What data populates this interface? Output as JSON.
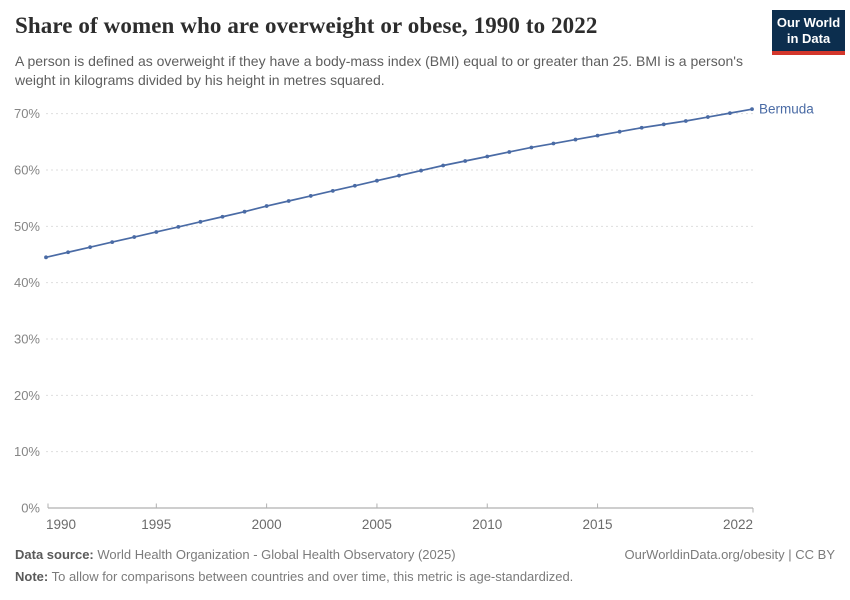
{
  "header": {
    "title": "Share of women who are overweight or obese, 1990 to 2022",
    "subtitle": "A person is defined as overweight if they have a body-mass index (BMI) equal to or greater than 25. BMI is a person's weight in kilograms divided by his height in metres squared.",
    "logo": {
      "line1": "Our World",
      "line2": "in Data"
    }
  },
  "chart_data": {
    "type": "line",
    "title": "Share of women who are overweight or obese, 1990 to 2022",
    "xlabel": "",
    "ylabel": "",
    "xlim": [
      1990,
      2022
    ],
    "ylim": [
      0,
      70
    ],
    "x_ticks": [
      1990,
      1995,
      2000,
      2005,
      2010,
      2015,
      2022
    ],
    "y_ticks": [
      0,
      10,
      20,
      30,
      40,
      50,
      60,
      70
    ],
    "y_tick_suffix": "%",
    "grid": "horizontal-dashed",
    "legend_position": "end-of-line-label",
    "series": [
      {
        "name": "Bermuda",
        "color": "#4a6ba5",
        "x": [
          1990,
          1991,
          1992,
          1993,
          1994,
          1995,
          1996,
          1997,
          1998,
          1999,
          2000,
          2001,
          2002,
          2003,
          2004,
          2005,
          2006,
          2007,
          2008,
          2009,
          2010,
          2011,
          2012,
          2013,
          2014,
          2015,
          2016,
          2017,
          2018,
          2019,
          2020,
          2021,
          2022
        ],
        "values": [
          44.5,
          45.4,
          46.3,
          47.2,
          48.1,
          49.0,
          49.9,
          50.8,
          51.7,
          52.6,
          53.6,
          54.5,
          55.4,
          56.3,
          57.2,
          58.1,
          59.0,
          59.9,
          60.8,
          61.6,
          62.4,
          63.2,
          64.0,
          64.7,
          65.4,
          66.1,
          66.8,
          67.5,
          68.1,
          68.7,
          69.4,
          70.1,
          70.8
        ]
      }
    ]
  },
  "colors": {
    "line": "#4a6ba5",
    "series_label": "#4a6ba5",
    "gridline": "#dedede",
    "axis_line": "#9e9e9e",
    "tick": "#b0b0b0",
    "y_label": "#858585",
    "x_label": "#6b6b6b",
    "logo_bg": "#0c2e4e",
    "logo_stripe": "#d3362b"
  },
  "footer": {
    "data_source_label": "Data source:",
    "data_source_value": "World Health Organization - Global Health Observatory (2025)",
    "link": "OurWorldinData.org/obesity | CC BY",
    "note_label": "Note:",
    "note_value": "To allow for comparisons between countries and over time, this metric is age-standardized."
  }
}
